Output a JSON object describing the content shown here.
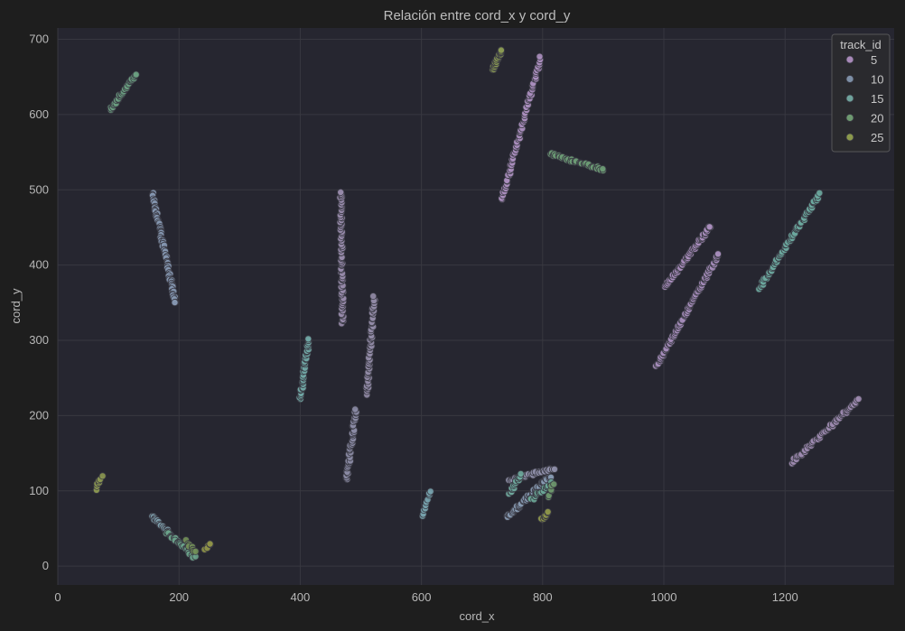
{
  "chart_data": {
    "type": "scatter",
    "title": "Relación entre cord_x y cord_y",
    "xlabel": "cord_x",
    "ylabel": "cord_y",
    "xlim": [
      0,
      1380
    ],
    "ylim": [
      -25,
      715
    ],
    "xticks": [
      0,
      200,
      400,
      600,
      800,
      1000,
      1200
    ],
    "yticks": [
      0,
      100,
      200,
      300,
      400,
      500,
      600,
      700
    ],
    "grid": true,
    "legend": {
      "title": "track_id",
      "placement": "top-right",
      "entries": [
        {
          "label": "5",
          "color": "#a889b8"
        },
        {
          "label": "10",
          "color": "#7d8fa6"
        },
        {
          "label": "15",
          "color": "#6fa39c"
        },
        {
          "label": "20",
          "color": "#6e9a70"
        },
        {
          "label": "25",
          "color": "#8c9a4c"
        }
      ]
    },
    "background": "#262630",
    "segments": [
      {
        "track_id": 2,
        "color": "#a98dbd",
        "from": [
          733,
          487
        ],
        "to": [
          797,
          676
        ],
        "n": 70
      },
      {
        "track_id": 2,
        "color": "#a98dbd",
        "from": [
          1002,
          370
        ],
        "to": [
          1077,
          452
        ],
        "n": 60
      },
      {
        "track_id": 3,
        "color": "#a48bb8",
        "from": [
          988,
          265
        ],
        "to": [
          1091,
          415
        ],
        "n": 90
      },
      {
        "track_id": 5,
        "color": "#9d8ab0",
        "from": [
          1212,
          138
        ],
        "to": [
          1322,
          222
        ],
        "n": 55
      },
      {
        "track_id": 6,
        "color": "#978aaa",
        "from": [
          470,
          322
        ],
        "to": [
          467,
          498
        ],
        "n": 75
      },
      {
        "track_id": 7,
        "color": "#918aa6",
        "from": [
          510,
          228
        ],
        "to": [
          522,
          357
        ],
        "n": 50
      },
      {
        "track_id": 8,
        "color": "#8a8aa4",
        "from": [
          476,
          114
        ],
        "to": [
          492,
          208
        ],
        "n": 45
      },
      {
        "track_id": 9,
        "color": "#8e8ea8",
        "from": [
          744,
          114
        ],
        "to": [
          818,
          130
        ],
        "n": 30
      },
      {
        "track_id": 10,
        "color": "#8496b0",
        "from": [
          156,
          495
        ],
        "to": [
          194,
          350
        ],
        "n": 75
      },
      {
        "track_id": 11,
        "color": "#8698b0",
        "from": [
          742,
          65
        ],
        "to": [
          812,
          120
        ],
        "n": 55
      },
      {
        "track_id": 12,
        "color": "#7ea0ae",
        "from": [
          156,
          67
        ],
        "to": [
          200,
          30
        ],
        "n": 30
      },
      {
        "track_id": 13,
        "color": "#76a2ac",
        "from": [
          602,
          67
        ],
        "to": [
          614,
          100
        ],
        "n": 10
      },
      {
        "track_id": 14,
        "color": "#70a6a4",
        "from": [
          400,
          222
        ],
        "to": [
          414,
          302
        ],
        "n": 40
      },
      {
        "track_id": 15,
        "color": "#6ba89e",
        "from": [
          1158,
          370
        ],
        "to": [
          1256,
          494
        ],
        "n": 70
      },
      {
        "track_id": 16,
        "color": "#6ea89c",
        "from": [
          745,
          95
        ],
        "to": [
          765,
          122
        ],
        "n": 16
      },
      {
        "track_id": 17,
        "color": "#6aa696",
        "from": [
          780,
          88
        ],
        "to": [
          815,
          110
        ],
        "n": 18
      },
      {
        "track_id": 18,
        "color": "#6aa28a",
        "from": [
          180,
          45
        ],
        "to": [
          226,
          12
        ],
        "n": 26
      },
      {
        "track_id": 19,
        "color": "#6a9e80",
        "from": [
          87,
          607
        ],
        "to": [
          128,
          652
        ],
        "n": 35
      },
      {
        "track_id": 20,
        "color": "#6b9a74",
        "from": [
          812,
          548
        ],
        "to": [
          900,
          527
        ],
        "n": 40
      },
      {
        "track_id": 21,
        "color": "#6c966c",
        "from": [
          810,
          92
        ],
        "to": [
          818,
          110
        ],
        "n": 6
      },
      {
        "track_id": 22,
        "color": "#728f58",
        "from": [
          212,
          34
        ],
        "to": [
          226,
          18
        ],
        "n": 8
      },
      {
        "track_id": 23,
        "color": "#8a9a52",
        "from": [
          718,
          660
        ],
        "to": [
          732,
          686
        ],
        "n": 30
      },
      {
        "track_id": 24,
        "color": "#8a9650",
        "from": [
          62,
          100
        ],
        "to": [
          72,
          120
        ],
        "n": 8
      },
      {
        "track_id": 25,
        "color": "#8c944a",
        "from": [
          798,
          60
        ],
        "to": [
          810,
          72
        ],
        "n": 10
      },
      {
        "track_id": 26,
        "color": "#8e9248",
        "from": [
          244,
          24
        ],
        "to": [
          252,
          28
        ],
        "n": 5
      }
    ]
  }
}
